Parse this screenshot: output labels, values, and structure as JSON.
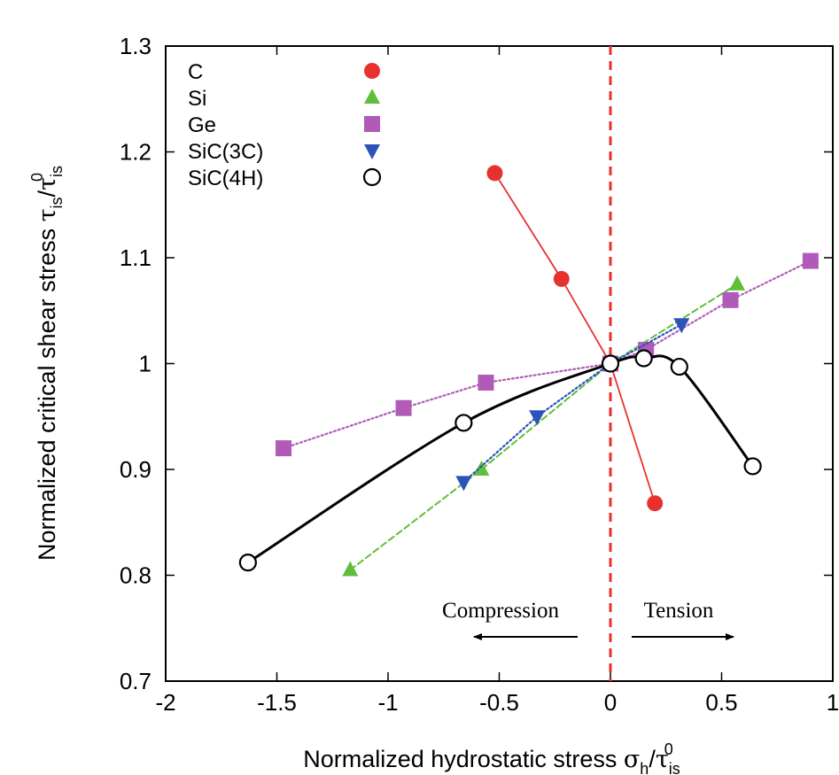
{
  "chart_data": {
    "type": "line",
    "title": "",
    "xlabel": "Normalized hydrostatic stress σh/τis0",
    "ylabel": "Normalized critical shear stress τis/τis0",
    "xlim": [
      -2,
      1
    ],
    "ylim": [
      0.7,
      1.3
    ],
    "xticks": [
      "-2",
      "-1.5",
      "-1",
      "-0.5",
      "0",
      "0.5",
      "1"
    ],
    "yticks": [
      "0.7",
      "0.8",
      "0.9",
      "1",
      "1.1",
      "1.2",
      "1.3"
    ],
    "grid": false,
    "legend_position": "top-left",
    "series": [
      {
        "name": "C",
        "marker": "circle",
        "color": "#e8312f",
        "line": "solid",
        "x": [
          -0.52,
          -0.22,
          0.0,
          0.2
        ],
        "y": [
          1.18,
          1.08,
          1.0,
          0.868
        ]
      },
      {
        "name": "Si",
        "marker": "triangle-up",
        "color": "#5fbf3a",
        "line": "dashed",
        "x": [
          -1.17,
          -0.58,
          0.0,
          0.57
        ],
        "y": [
          0.805,
          0.9,
          1.0,
          1.075
        ]
      },
      {
        "name": "Ge",
        "marker": "square",
        "color": "#b05bb8",
        "line": "dotted",
        "x": [
          -1.47,
          -0.93,
          -0.56,
          0.0,
          0.16,
          0.54,
          0.9
        ],
        "y": [
          0.92,
          0.958,
          0.982,
          1.0,
          1.013,
          1.06,
          1.097
        ]
      },
      {
        "name": "SiC(3C)",
        "marker": "triangle-down",
        "color": "#2c53b8",
        "line": "dotted",
        "x": [
          -0.66,
          -0.33,
          0.0,
          0.32
        ],
        "y": [
          0.888,
          0.95,
          1.0,
          1.037
        ]
      },
      {
        "name": "SiC(4H)",
        "marker": "open-circle",
        "color": "#000000",
        "line": "smooth",
        "x": [
          -1.63,
          -0.66,
          0.0,
          0.15,
          0.31,
          0.64
        ],
        "y": [
          0.812,
          0.944,
          1.0,
          1.005,
          0.997,
          0.903
        ]
      }
    ],
    "vline": {
      "x": 0,
      "color": "#e8312f",
      "style": "dashed"
    },
    "annotations": [
      {
        "text": "Compression",
        "arrow": "left"
      },
      {
        "text": "Tension",
        "arrow": "right"
      }
    ]
  }
}
